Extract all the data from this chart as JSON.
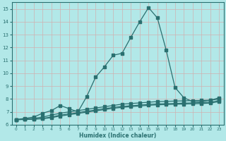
{
  "xlabel": "Humidex (Indice chaleur)",
  "bg_color": "#b2e8e8",
  "grid_color": "#d0b0b0",
  "line_color": "#2a7070",
  "xlim": [
    -0.5,
    23.5
  ],
  "ylim": [
    6,
    15.5
  ],
  "yticks": [
    6,
    7,
    8,
    9,
    10,
    11,
    12,
    13,
    14,
    15
  ],
  "xticks": [
    0,
    1,
    2,
    3,
    4,
    5,
    6,
    7,
    8,
    9,
    10,
    11,
    12,
    13,
    14,
    15,
    16,
    17,
    18,
    19,
    20,
    21,
    22,
    23
  ],
  "line1_x": [
    0,
    1,
    2,
    3,
    4,
    5,
    6,
    7,
    8,
    9,
    10,
    11,
    12,
    13,
    14,
    15,
    16,
    17,
    18,
    19,
    20,
    21,
    22,
    23
  ],
  "line1_y": [
    6.4,
    6.5,
    6.6,
    6.9,
    7.1,
    7.5,
    7.25,
    7.0,
    8.2,
    9.7,
    10.5,
    11.4,
    11.55,
    12.8,
    14.0,
    15.1,
    14.3,
    11.8,
    8.9,
    8.1,
    7.8,
    7.8,
    7.9,
    8.1
  ],
  "line2_x": [
    0,
    1,
    2,
    3,
    4,
    5,
    6,
    7,
    8,
    9,
    10,
    11,
    12,
    13,
    14,
    15,
    16,
    17,
    18,
    19,
    20,
    21,
    22,
    23
  ],
  "line2_y": [
    6.4,
    6.45,
    6.5,
    6.6,
    6.75,
    6.9,
    7.0,
    7.1,
    7.2,
    7.3,
    7.4,
    7.5,
    7.6,
    7.65,
    7.7,
    7.75,
    7.8,
    7.82,
    7.84,
    7.86,
    7.88,
    7.89,
    7.91,
    8.0
  ],
  "line3_x": [
    0,
    1,
    2,
    3,
    4,
    5,
    6,
    7,
    8,
    9,
    10,
    11,
    12,
    13,
    14,
    15,
    16,
    17,
    18,
    19,
    20,
    21,
    22,
    23
  ],
  "line3_y": [
    6.4,
    6.42,
    6.45,
    6.5,
    6.6,
    6.75,
    6.85,
    6.95,
    7.05,
    7.15,
    7.25,
    7.35,
    7.42,
    7.48,
    7.53,
    7.58,
    7.62,
    7.64,
    7.66,
    7.68,
    7.7,
    7.72,
    7.75,
    7.88
  ],
  "line4_x": [
    0,
    1,
    2,
    3,
    4,
    5,
    6,
    7,
    8,
    9,
    10,
    11,
    12,
    13,
    14,
    15,
    16,
    17,
    18,
    19,
    20,
    21,
    22,
    23
  ],
  "line4_y": [
    6.4,
    6.41,
    6.43,
    6.47,
    6.55,
    6.68,
    6.78,
    6.88,
    6.98,
    7.08,
    7.18,
    7.28,
    7.35,
    7.41,
    7.46,
    7.51,
    7.55,
    7.57,
    7.59,
    7.61,
    7.63,
    7.65,
    7.68,
    7.8
  ]
}
